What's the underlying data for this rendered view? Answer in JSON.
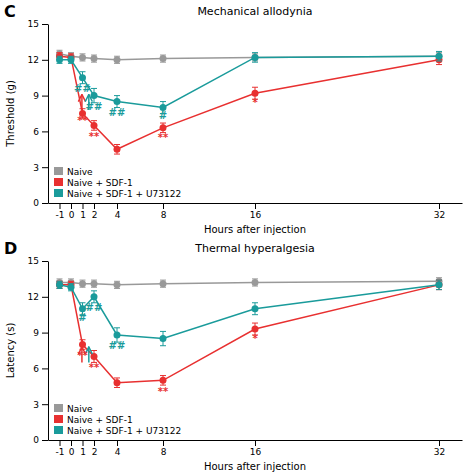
{
  "chart_data": [
    {
      "type": "line",
      "title": "Mechanical allodynia",
      "panel_label": "C",
      "x_label": "Hours after injection",
      "y_label": "Threshold (g)",
      "x": [
        -1,
        0,
        1,
        2,
        4,
        8,
        16,
        32
      ],
      "xlim": [
        -2,
        34
      ],
      "xticks": [
        -1,
        0,
        1,
        2,
        4,
        8,
        16,
        32
      ],
      "ylim": [
        0,
        15
      ],
      "yticks": [
        0,
        3,
        6,
        9,
        12,
        15
      ],
      "grid": false,
      "legend": "lower left",
      "marker": "o",
      "line_style": "solid",
      "series": [
        {
          "name": "Naive",
          "color": "#999999",
          "values": [
            12.5,
            12.3,
            12.2,
            12.1,
            12.0,
            12.1,
            12.2,
            12.3
          ],
          "errors": [
            0.3,
            0.3,
            0.3,
            0.3,
            0.3,
            0.3,
            0.3,
            0.3
          ]
        },
        {
          "name": "Naive + SDF-1",
          "color": "#e83030",
          "values": [
            12.3,
            12.2,
            7.5,
            6.5,
            4.5,
            6.3,
            9.2,
            12.0
          ],
          "errors": [
            0.3,
            0.3,
            0.4,
            0.4,
            0.4,
            0.4,
            0.5,
            0.4
          ]
        },
        {
          "name": "Naive + SDF-1 + U73122",
          "color": "#1a9b9b",
          "values": [
            12.0,
            12.0,
            10.5,
            9.0,
            8.5,
            8.0,
            12.2,
            12.3
          ],
          "errors": [
            0.3,
            0.3,
            0.5,
            0.6,
            0.5,
            0.5,
            0.4,
            0.4
          ]
        }
      ],
      "arrows": [
        {
          "x": 0.95,
          "y": 7.8,
          "y_end": 9.1,
          "color": "#e83030"
        },
        {
          "x": 1.55,
          "y": 7.8,
          "y_end": 9.1,
          "color": "#1a9b9b"
        }
      ],
      "annotations": [
        {
          "text": "**",
          "x": 1,
          "y": 6.6,
          "color": "#e83030"
        },
        {
          "text": "**",
          "x": 2,
          "y": 5.3,
          "color": "#e83030"
        },
        {
          "text": "**",
          "x": 8,
          "y": 5.2,
          "color": "#e83030"
        },
        {
          "text": "*",
          "x": 16,
          "y": 8.1,
          "color": "#e83030"
        },
        {
          "text": "##",
          "x": 1,
          "y": 9.3,
          "color": "#1a9b9b"
        },
        {
          "text": "##",
          "x": 2,
          "y": 7.8,
          "color": "#1a9b9b"
        },
        {
          "text": "##",
          "x": 4,
          "y": 7.3,
          "color": "#1a9b9b"
        },
        {
          "text": "#",
          "x": 8,
          "y": 7.0,
          "color": "#1a9b9b"
        }
      ]
    },
    {
      "type": "line",
      "title": "Thermal hyperalgesia",
      "panel_label": "D",
      "x_label": "Hours after injection",
      "y_label": "Latency (s)",
      "x": [
        -1,
        0,
        1,
        2,
        4,
        8,
        16,
        32
      ],
      "xlim": [
        -2,
        34
      ],
      "xticks": [
        -1,
        0,
        1,
        2,
        4,
        8,
        16,
        32
      ],
      "ylim": [
        0,
        15
      ],
      "yticks": [
        0,
        3,
        6,
        9,
        12,
        15
      ],
      "grid": false,
      "legend": "lower left",
      "marker": "o",
      "line_style": "solid",
      "series": [
        {
          "name": "Naive",
          "color": "#999999",
          "values": [
            13.2,
            13.2,
            13.1,
            13.1,
            13.0,
            13.1,
            13.2,
            13.3
          ],
          "errors": [
            0.3,
            0.3,
            0.3,
            0.3,
            0.3,
            0.3,
            0.3,
            0.3
          ]
        },
        {
          "name": "Naive + SDF-1",
          "color": "#e83030",
          "values": [
            13.0,
            13.0,
            8.0,
            7.0,
            4.8,
            5.0,
            9.3,
            13.0
          ],
          "errors": [
            0.3,
            0.3,
            0.4,
            0.5,
            0.4,
            0.4,
            0.5,
            0.4
          ]
        },
        {
          "name": "Naive + SDF-1 + U73122",
          "color": "#1a9b9b",
          "values": [
            13.0,
            12.8,
            11.0,
            12.0,
            8.8,
            8.5,
            11.0,
            13.0
          ],
          "errors": [
            0.3,
            0.3,
            0.5,
            0.5,
            0.6,
            0.6,
            0.5,
            0.4
          ]
        }
      ],
      "arrows": [
        {
          "x": 0.95,
          "y": 6.5,
          "y_end": 7.8,
          "color": "#e83030"
        },
        {
          "x": 1.55,
          "y": 6.5,
          "y_end": 7.8,
          "color": "#1a9b9b"
        }
      ],
      "annotations": [
        {
          "text": "**",
          "x": 1,
          "y": 6.8,
          "color": "#e83030"
        },
        {
          "text": "**",
          "x": 2,
          "y": 5.8,
          "color": "#e83030"
        },
        {
          "text": "**",
          "x": 8,
          "y": 3.8,
          "color": "#e83030"
        },
        {
          "text": "*",
          "x": 16,
          "y": 8.2,
          "color": "#e83030"
        },
        {
          "text": "#",
          "x": 1,
          "y": 10.0,
          "color": "#1a9b9b"
        },
        {
          "text": "##",
          "x": 2,
          "y": 10.8,
          "color": "#1a9b9b"
        },
        {
          "text": "##",
          "x": 4,
          "y": 7.6,
          "color": "#1a9b9b"
        }
      ]
    }
  ]
}
